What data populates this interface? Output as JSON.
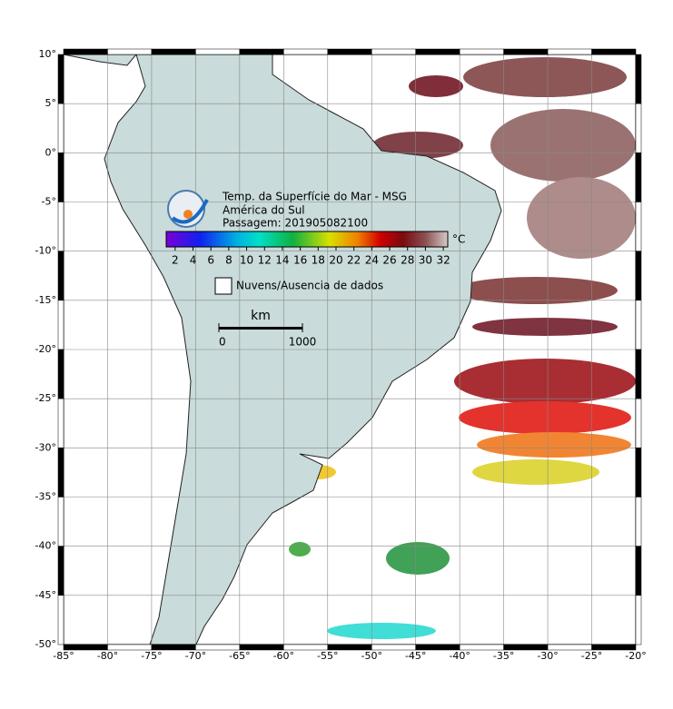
{
  "map": {
    "title_lines": [
      "Temp. da Superfície do Mar - MSG",
      "América do Sul",
      "Passagem: 201905082100"
    ],
    "lon_lim": [
      -85,
      -20
    ],
    "lat_lim": [
      -50,
      10
    ],
    "lon_ticks": [
      {
        "value": -85,
        "label": "-85°"
      },
      {
        "value": -80,
        "label": "-80°"
      },
      {
        "value": -75,
        "label": "-75°"
      },
      {
        "value": -70,
        "label": "-70°"
      },
      {
        "value": -65,
        "label": "-65°"
      },
      {
        "value": -60,
        "label": "-60°"
      },
      {
        "value": -55,
        "label": "-55°"
      },
      {
        "value": -50,
        "label": "-50°"
      },
      {
        "value": -45,
        "label": "-45°"
      },
      {
        "value": -40,
        "label": "-40°"
      },
      {
        "value": -35,
        "label": "-35°"
      },
      {
        "value": -30,
        "label": "-30°"
      },
      {
        "value": -25,
        "label": "-25°"
      },
      {
        "value": -20,
        "label": "-20°"
      }
    ],
    "lat_ticks": [
      {
        "value": 10,
        "label": "10°"
      },
      {
        "value": 5,
        "label": "5°"
      },
      {
        "value": 0,
        "label": "0°"
      },
      {
        "value": -5,
        "label": "-5°"
      },
      {
        "value": -10,
        "label": "-10°"
      },
      {
        "value": -15,
        "label": "-15°"
      },
      {
        "value": -20,
        "label": "-20°"
      },
      {
        "value": -25,
        "label": "-25°"
      },
      {
        "value": -30,
        "label": "-30°"
      },
      {
        "value": -35,
        "label": "-35°"
      },
      {
        "value": -40,
        "label": "-40°"
      },
      {
        "value": -45,
        "label": "-45°"
      },
      {
        "value": -50,
        "label": "-50°"
      }
    ],
    "colorbar": {
      "lim": [
        1,
        32.5
      ],
      "ticks": [
        2,
        4,
        6,
        8,
        10,
        12,
        14,
        16,
        18,
        20,
        22,
        24,
        26,
        28,
        30,
        32
      ],
      "unit": "°C"
    },
    "legend_label": "Nuvens/Ausencia de dados",
    "scale_bar": {
      "unit": "km",
      "ticks": [
        0,
        1000
      ]
    }
  }
}
